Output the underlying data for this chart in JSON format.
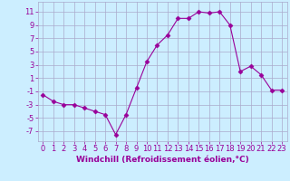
{
  "x": [
    0,
    1,
    2,
    3,
    4,
    5,
    6,
    7,
    8,
    9,
    10,
    11,
    12,
    13,
    14,
    15,
    16,
    17,
    18,
    19,
    20,
    21,
    22,
    23
  ],
  "y": [
    -1.5,
    -2.5,
    -3.0,
    -3.0,
    -3.5,
    -4.0,
    -4.5,
    -7.5,
    -4.5,
    -0.5,
    3.5,
    6.0,
    7.5,
    10.0,
    10.0,
    11.0,
    10.8,
    11.0,
    9.0,
    2.0,
    2.8,
    1.5,
    -0.8,
    -0.8
  ],
  "line_color": "#990099",
  "marker": "D",
  "marker_size": 2.5,
  "bg_color": "#cceeff",
  "grid_color": "#aaaacc",
  "xlabel": "Windchill (Refroidissement éolien,°C)",
  "ylabel_ticks": [
    -7,
    -5,
    -3,
    -1,
    1,
    3,
    5,
    7,
    9,
    11
  ],
  "xlim": [
    -0.5,
    23.5
  ],
  "ylim": [
    -8.5,
    12.5
  ],
  "tick_color": "#990099",
  "label_color": "#990099",
  "font_size": 6,
  "xlabel_fontsize": 6.5
}
